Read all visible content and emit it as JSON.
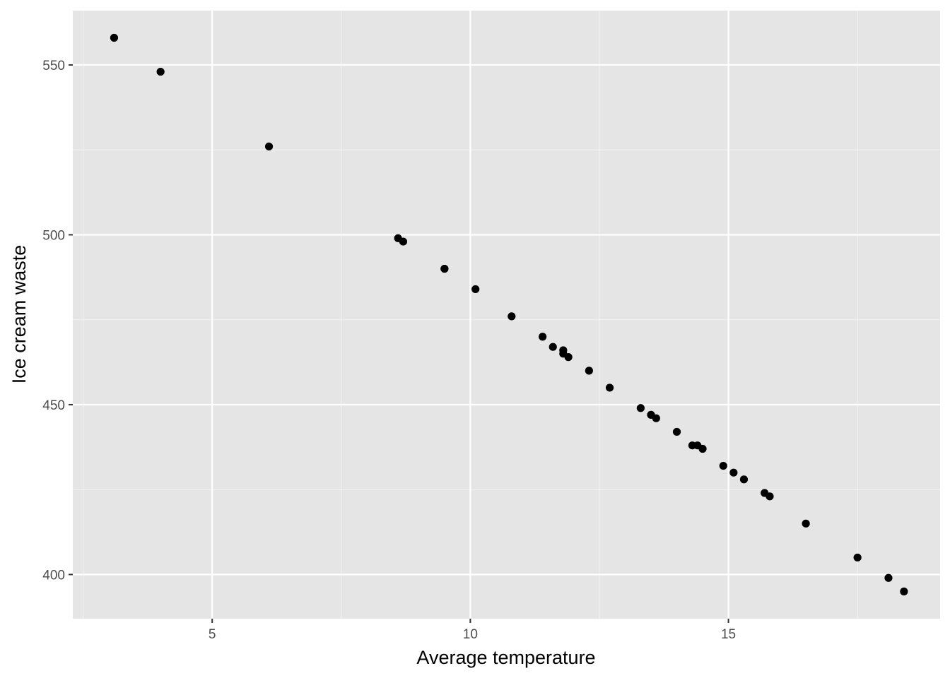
{
  "chart_data": {
    "type": "scatter",
    "title": "",
    "xlabel": "Average temperature",
    "ylabel": "Ice cream waste",
    "xlim": [
      2.3,
      19.1
    ],
    "ylim": [
      387,
      566
    ],
    "x_ticks": [
      5,
      10,
      15
    ],
    "x_minor_ticks": [
      2.5,
      7.5,
      12.5,
      17.5
    ],
    "y_ticks": [
      400,
      450,
      500,
      550
    ],
    "y_minor_ticks": [
      425,
      475,
      525
    ],
    "grid": true,
    "legend": "none",
    "point_color": "#000000",
    "panel_background": "#e5e5e5",
    "points": [
      {
        "x": 3.1,
        "y": 558
      },
      {
        "x": 4.0,
        "y": 548
      },
      {
        "x": 6.1,
        "y": 526
      },
      {
        "x": 8.6,
        "y": 499
      },
      {
        "x": 8.7,
        "y": 498
      },
      {
        "x": 9.5,
        "y": 490
      },
      {
        "x": 9.5,
        "y": 490
      },
      {
        "x": 10.1,
        "y": 484
      },
      {
        "x": 10.8,
        "y": 476
      },
      {
        "x": 11.4,
        "y": 470
      },
      {
        "x": 11.6,
        "y": 467
      },
      {
        "x": 11.8,
        "y": 466
      },
      {
        "x": 11.8,
        "y": 465
      },
      {
        "x": 11.9,
        "y": 464
      },
      {
        "x": 12.3,
        "y": 460
      },
      {
        "x": 12.7,
        "y": 455
      },
      {
        "x": 13.3,
        "y": 449
      },
      {
        "x": 13.5,
        "y": 447
      },
      {
        "x": 13.6,
        "y": 446
      },
      {
        "x": 14.0,
        "y": 442
      },
      {
        "x": 14.3,
        "y": 438
      },
      {
        "x": 14.4,
        "y": 438
      },
      {
        "x": 14.5,
        "y": 437
      },
      {
        "x": 14.9,
        "y": 432
      },
      {
        "x": 15.1,
        "y": 430
      },
      {
        "x": 15.3,
        "y": 428
      },
      {
        "x": 15.7,
        "y": 424
      },
      {
        "x": 15.8,
        "y": 423
      },
      {
        "x": 16.5,
        "y": 415
      },
      {
        "x": 17.5,
        "y": 405
      },
      {
        "x": 18.1,
        "y": 399
      },
      {
        "x": 18.4,
        "y": 395
      }
    ]
  }
}
